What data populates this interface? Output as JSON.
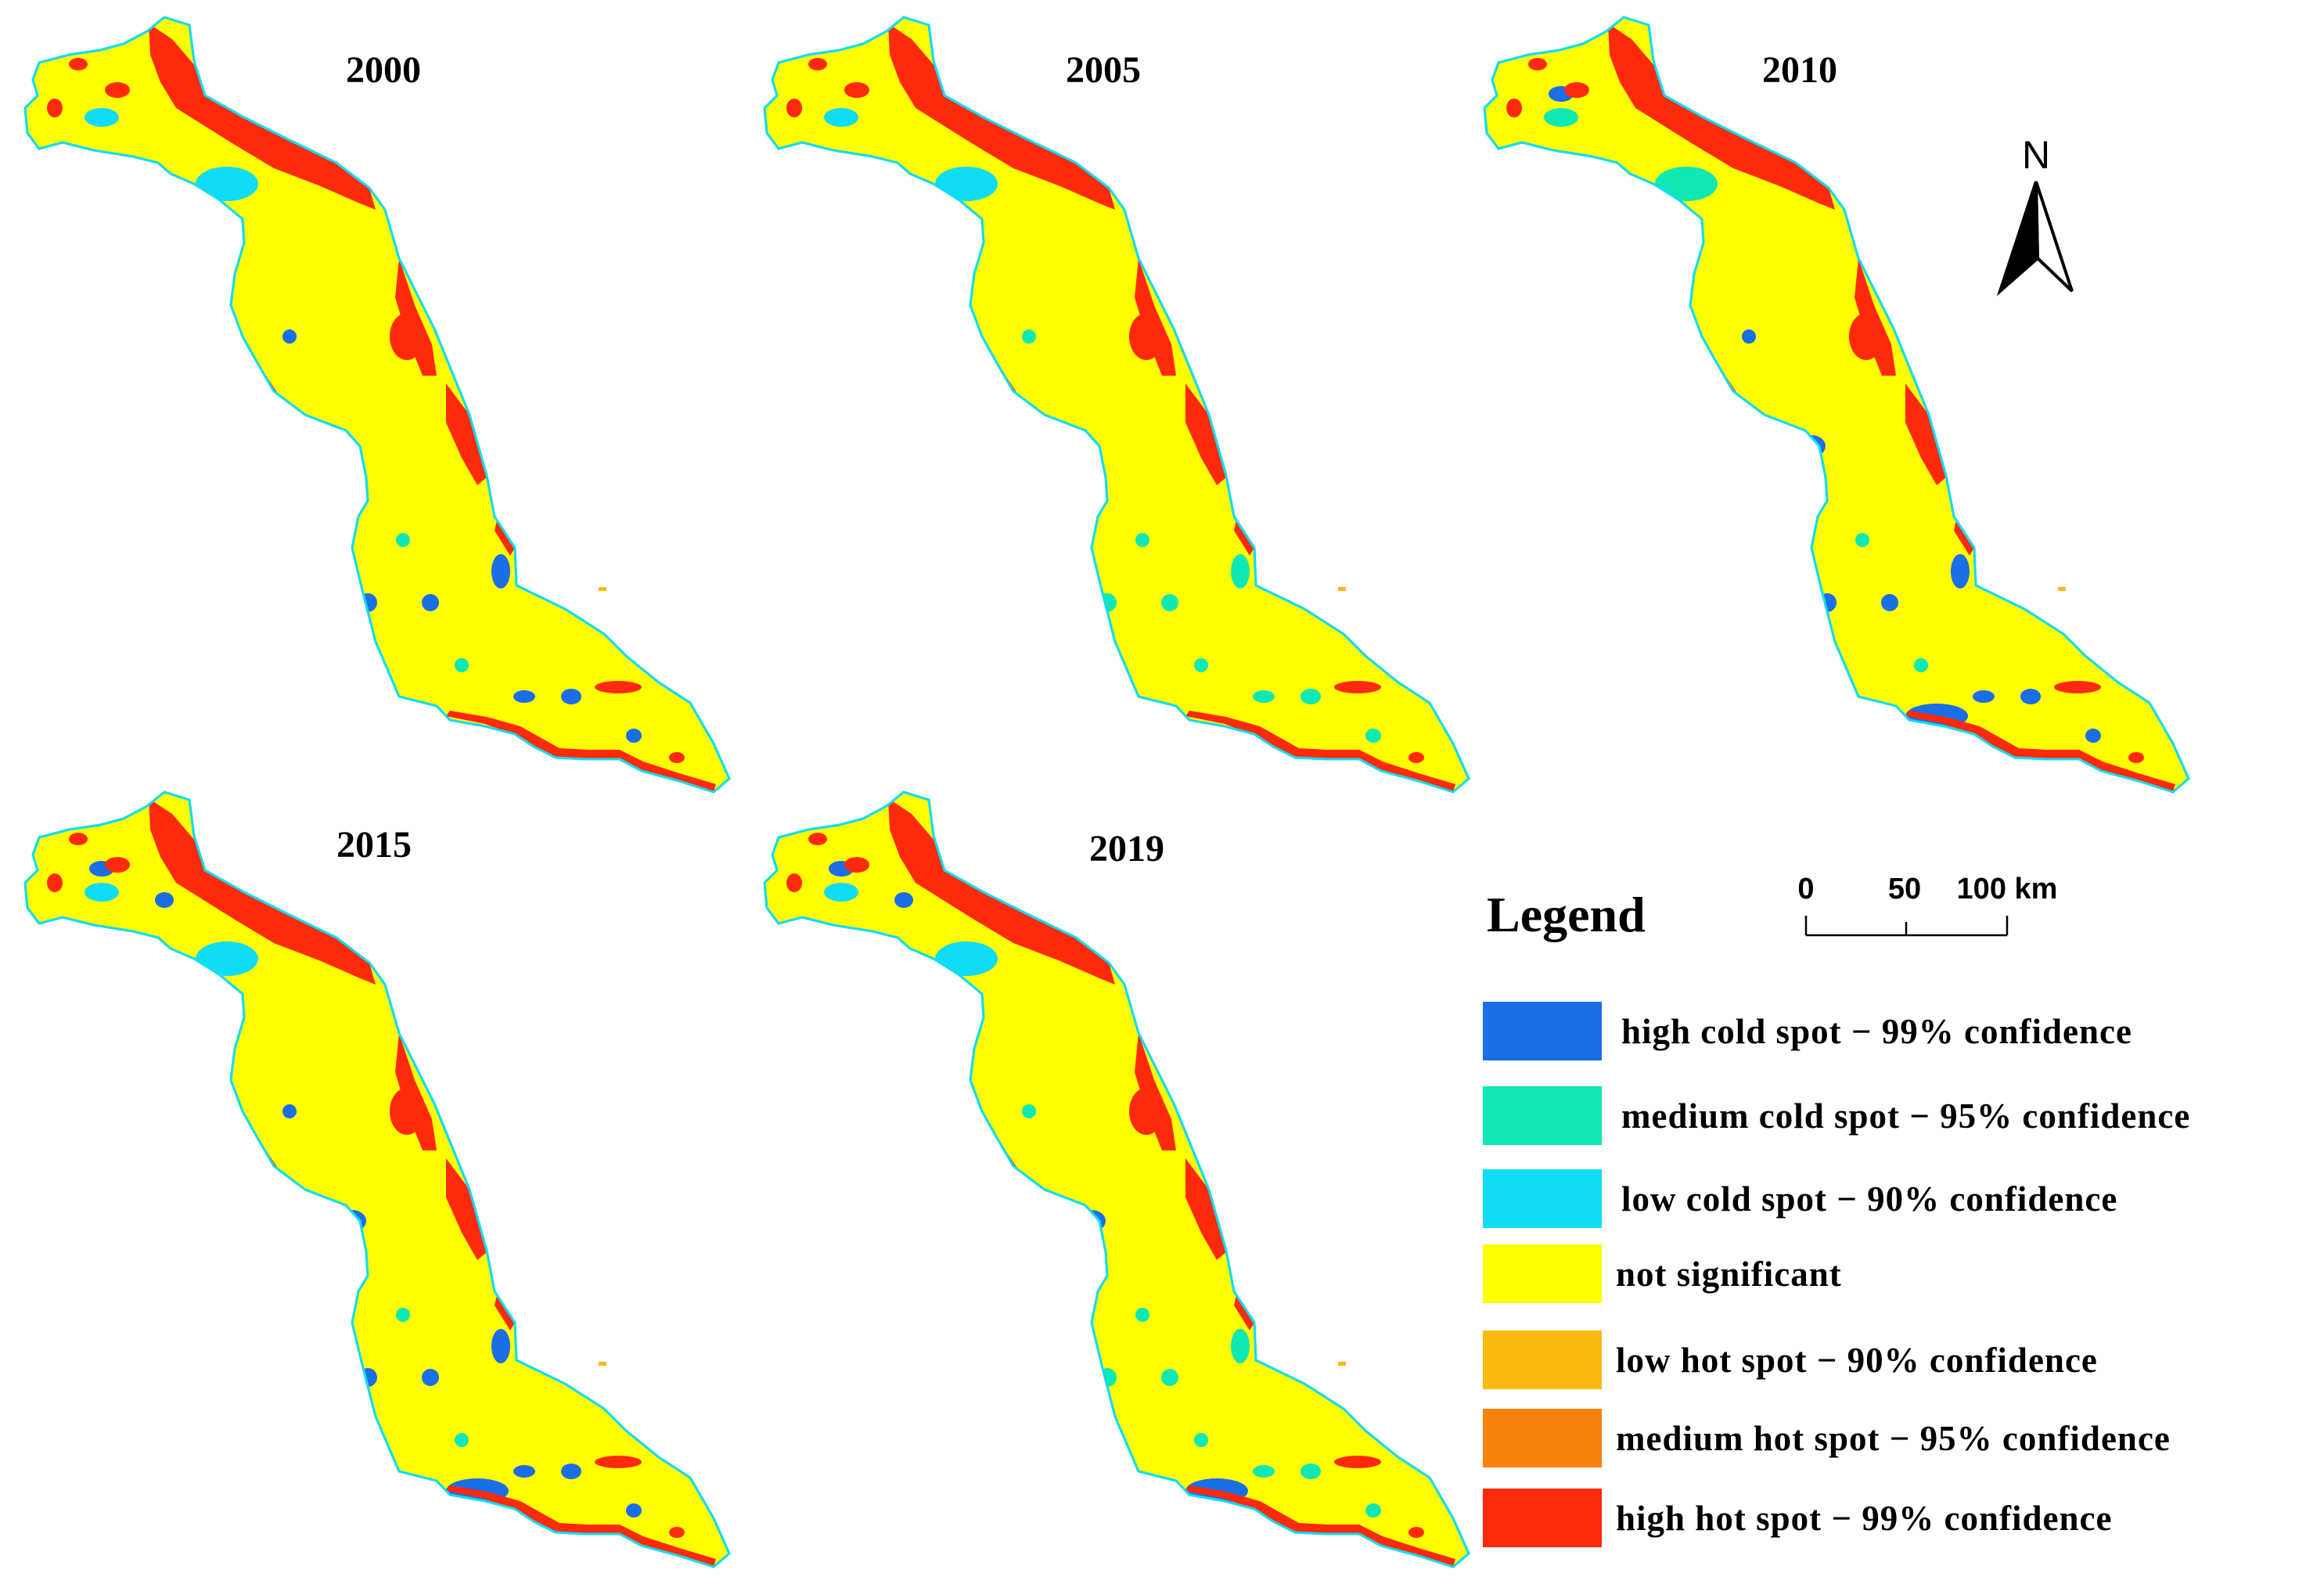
{
  "panels": [
    {
      "year": "2000",
      "variant": 0
    },
    {
      "year": "2005",
      "variant": 1
    },
    {
      "year": "2010",
      "variant": 2
    },
    {
      "year": "2015",
      "variant": 3
    },
    {
      "year": "2019",
      "variant": 4
    }
  ],
  "north_label": "N",
  "scale_bar": {
    "ticks": [
      "0",
      "50",
      "100 km"
    ]
  },
  "legend": {
    "title": "Legend",
    "items": [
      {
        "label": "high cold spot − 99% confidence",
        "color": "#1a6ee8"
      },
      {
        "label": "medium cold spot − 95% confidence",
        "color": "#10e8b4"
      },
      {
        "label": "low cold spot − 90% confidence",
        "color": "#10dcf5"
      },
      {
        "label": "not significant",
        "color": "#ffff00"
      },
      {
        "label": "low hot spot − 90% confidence",
        "color": "#fbb810"
      },
      {
        "label": "medium hot spot − 95% confidence",
        "color": "#f8800c"
      },
      {
        "label": "high hot spot − 99% confidence",
        "color": "#ff2a0a"
      }
    ]
  }
}
